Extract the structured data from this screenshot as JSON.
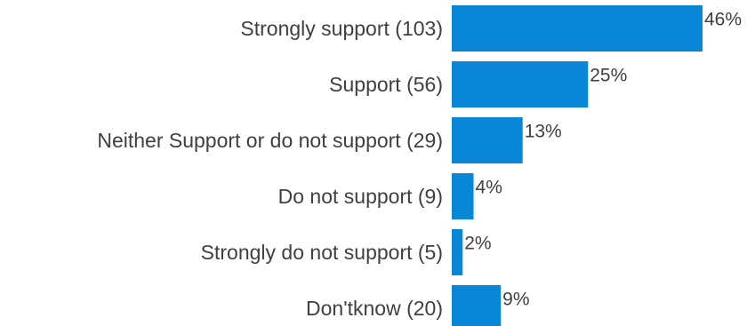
{
  "chart_data": {
    "type": "bar",
    "orientation": "horizontal",
    "categories": [
      "Strongly support (103)",
      "Support (56)",
      "Neither Support or do not support (29)",
      "Do not support (9)",
      "Strongly do not support (5)",
      "Don'tknow (20)"
    ],
    "values": [
      46,
      25,
      13,
      4,
      2,
      9
    ],
    "value_labels": [
      "46%",
      "25%",
      "13%",
      "4%",
      "2%",
      "9%"
    ],
    "unit": "%",
    "title": "",
    "xlabel": "",
    "ylabel": "",
    "xlim": [
      0,
      46
    ],
    "grid": false,
    "legend": "none",
    "bar_color": "#0a86d6",
    "text_color": "#404040"
  }
}
